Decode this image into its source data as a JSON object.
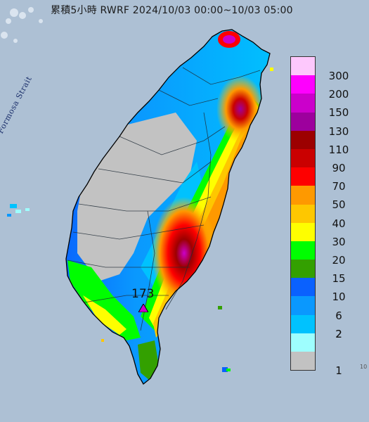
{
  "title": "累積5小時 RWRF 2024/10/03 00:00~10/03 05:00",
  "strait_label": "Formosa Strait",
  "max_value_label": "173",
  "edge_mark": "10",
  "legend": {
    "levels": [
      {
        "label": "300",
        "color": "#fdc8fc"
      },
      {
        "label": "200",
        "color": "#fe00fe"
      },
      {
        "label": "150",
        "color": "#cb00cb"
      },
      {
        "label": "130",
        "color": "#9d009d"
      },
      {
        "label": "110",
        "color": "#9c0000"
      },
      {
        "label": "90",
        "color": "#ca0000"
      },
      {
        "label": "70",
        "color": "#fe0000"
      },
      {
        "label": "50",
        "color": "#fe9900"
      },
      {
        "label": "40",
        "color": "#fec700"
      },
      {
        "label": "30",
        "color": "#fefe00"
      },
      {
        "label": "20",
        "color": "#00fe00"
      },
      {
        "label": "15",
        "color": "#33a000"
      },
      {
        "label": "10",
        "color": "#0a61fe"
      },
      {
        "label": "6",
        "color": "#0a98fe"
      },
      {
        "label": "2",
        "color": "#00c2fe"
      },
      {
        "label": "1",
        "color": "#9efefe"
      },
      {
        "label": "",
        "color": "#c2c2c2"
      }
    ]
  },
  "colors": {
    "sea": "#a8bcd0",
    "coastline": "#000000",
    "boundary": "#1f2b36"
  }
}
